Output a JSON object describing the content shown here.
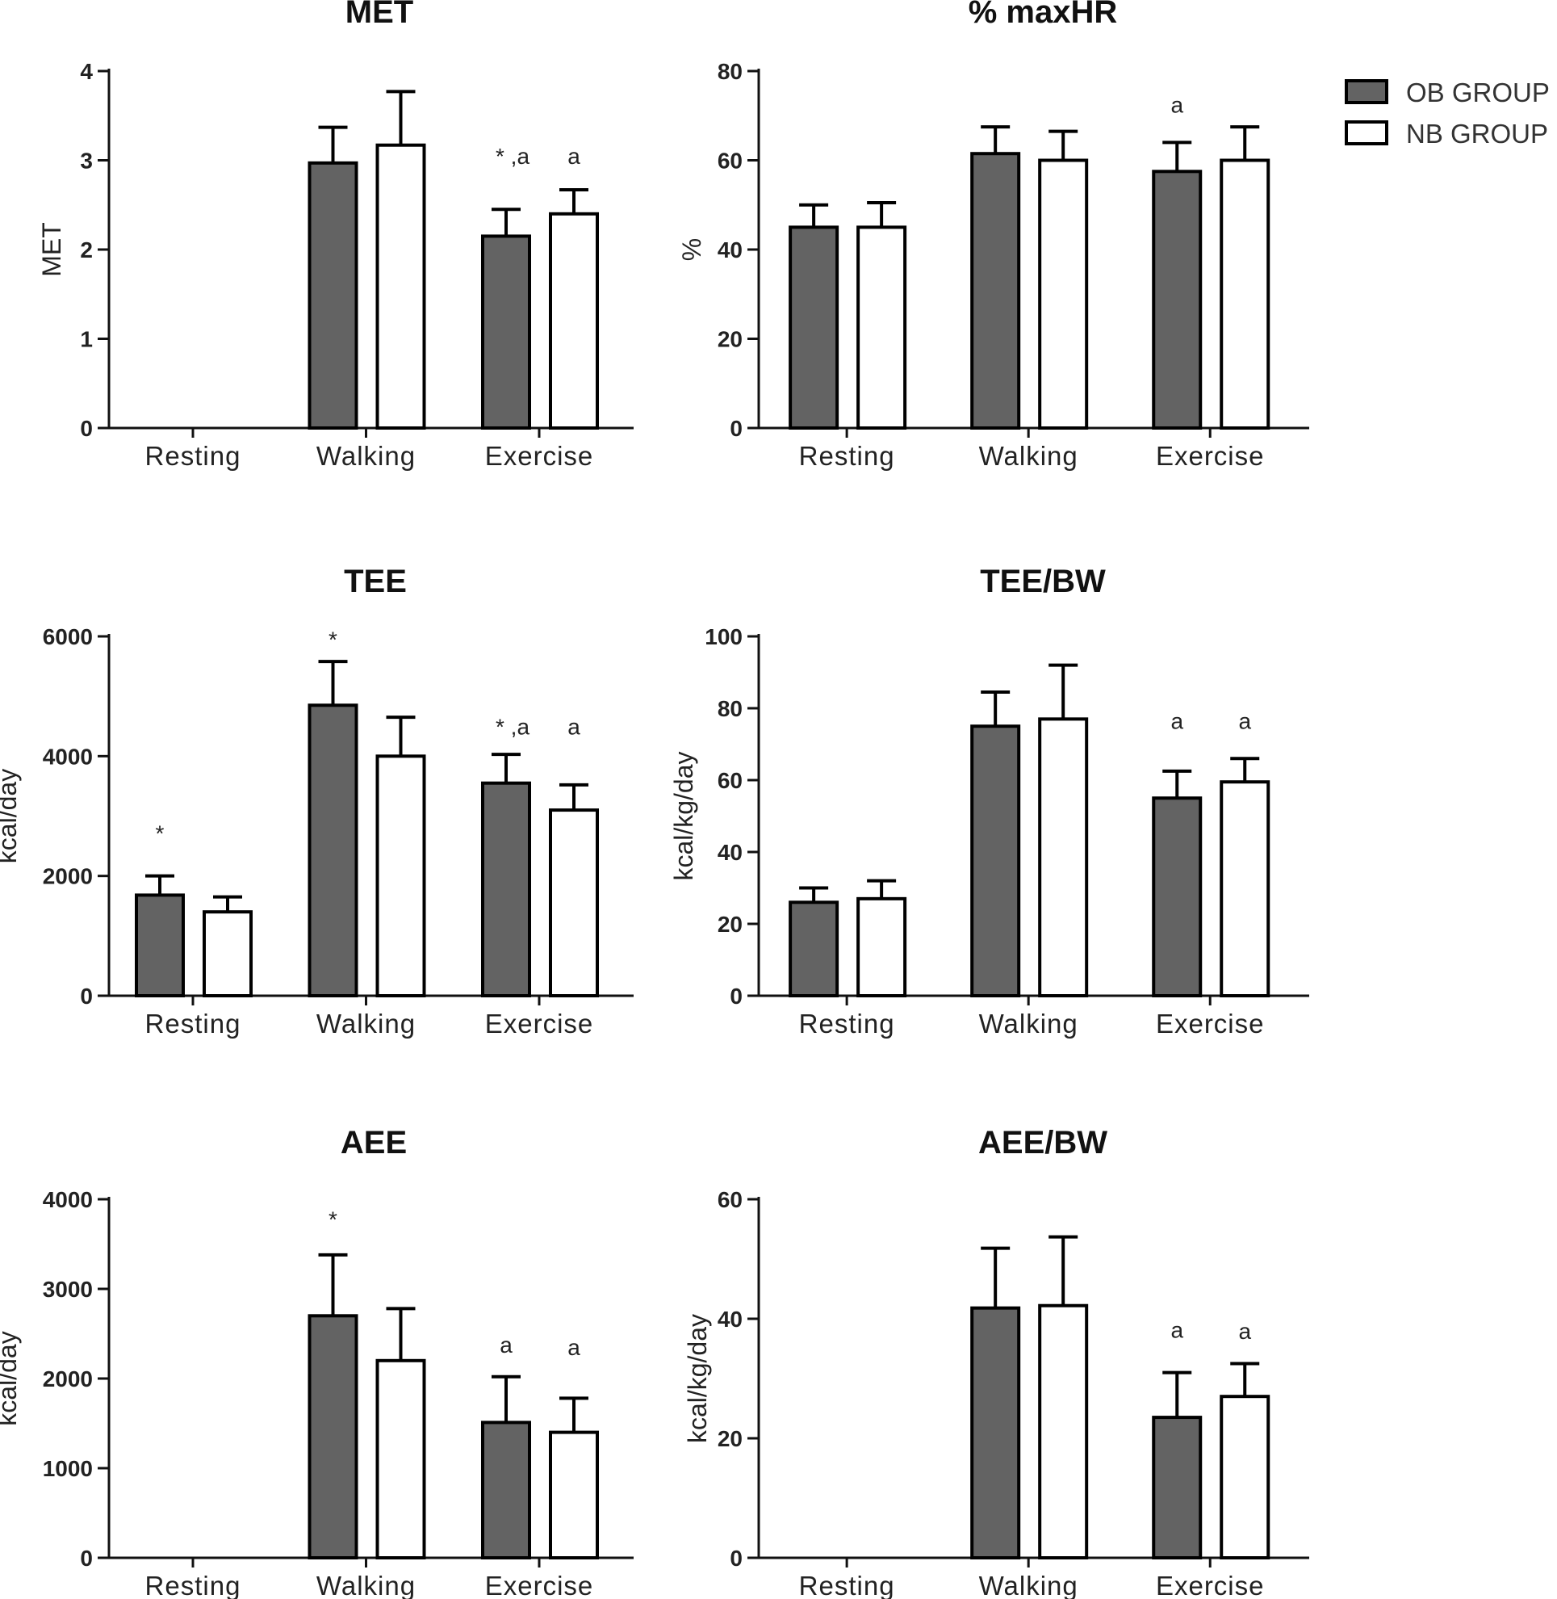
{
  "colors": {
    "ob": "#636363",
    "nb": "#ffffff",
    "stroke": "#000000"
  },
  "legend": [
    {
      "label": "OB GROUP",
      "color": "#636363"
    },
    {
      "label": "NB GROUP",
      "color": "#ffffff"
    }
  ],
  "chart_data": [
    {
      "type": "bar",
      "title": "MET",
      "ylabel": "MET",
      "ylim": [
        0,
        4
      ],
      "yticks": [
        0,
        1,
        2,
        3,
        4
      ],
      "categories": [
        "Resting",
        "Walking",
        "Exercise"
      ],
      "series": [
        {
          "name": "OB GROUP",
          "values": [
            null,
            2.97,
            2.15
          ],
          "err": [
            null,
            0.4,
            0.3
          ]
        },
        {
          "name": "NB GROUP",
          "values": [
            null,
            3.17,
            2.4
          ],
          "err": [
            null,
            0.6,
            0.27
          ]
        }
      ],
      "annotations": [
        {
          "category": 2,
          "series": 0,
          "text": "* ,a",
          "at": 3.05
        },
        {
          "category": 2,
          "series": 1,
          "text": "a",
          "at": 3.05
        }
      ]
    },
    {
      "type": "bar",
      "title": "% maxHR",
      "ylabel": "%",
      "ylim": [
        0,
        80
      ],
      "yticks": [
        0,
        20,
        40,
        60,
        80
      ],
      "categories": [
        "Resting",
        "Walking",
        "Exercise"
      ],
      "series": [
        {
          "name": "OB GROUP",
          "values": [
            45,
            61.5,
            57.5
          ],
          "err": [
            5,
            6,
            6.5
          ]
        },
        {
          "name": "NB GROUP",
          "values": [
            45,
            60,
            60
          ],
          "err": [
            5.5,
            6.5,
            7.5
          ]
        }
      ],
      "annotations": [
        {
          "category": 2,
          "series": 0,
          "text": "a",
          "at": 72.5
        }
      ]
    },
    {
      "type": "bar",
      "title": "TEE",
      "ylabel": "kcal/day",
      "ylim": [
        0,
        6000
      ],
      "yticks": [
        0,
        2000,
        4000,
        6000
      ],
      "categories": [
        "Resting",
        "Walking",
        "Exercise"
      ],
      "series": [
        {
          "name": "OB GROUP",
          "values": [
            1680,
            4850,
            3550
          ],
          "err": [
            320,
            730,
            480
          ]
        },
        {
          "name": "NB GROUP",
          "values": [
            1400,
            4000,
            3100
          ],
          "err": [
            250,
            650,
            420
          ]
        }
      ],
      "annotations": [
        {
          "category": 0,
          "series": 0,
          "text": "*",
          "at": 2720
        },
        {
          "category": 1,
          "series": 0,
          "text": "*",
          "at": 5950
        },
        {
          "category": 2,
          "series": 0,
          "text": "* ,a",
          "at": 4500
        },
        {
          "category": 2,
          "series": 1,
          "text": "a",
          "at": 4500
        }
      ]
    },
    {
      "type": "bar",
      "title": "TEE/BW",
      "ylabel": "kcal/kg/day",
      "ylim": [
        0,
        100
      ],
      "yticks": [
        0,
        20,
        40,
        60,
        80,
        100
      ],
      "categories": [
        "Resting",
        "Walking",
        "Exercise"
      ],
      "series": [
        {
          "name": "OB GROUP",
          "values": [
            26,
            75,
            55
          ],
          "err": [
            4,
            9.5,
            7.5
          ]
        },
        {
          "name": "NB GROUP",
          "values": [
            27,
            77,
            59.5
          ],
          "err": [
            5,
            15,
            6.5
          ]
        }
      ],
      "annotations": [
        {
          "category": 2,
          "series": 0,
          "text": "a",
          "at": 76.5
        },
        {
          "category": 2,
          "series": 1,
          "text": "a",
          "at": 76.5
        }
      ]
    },
    {
      "type": "bar",
      "title": "AEE",
      "ylabel": "kcal/day",
      "ylim": [
        0,
        4000
      ],
      "yticks": [
        0,
        1000,
        2000,
        3000,
        4000
      ],
      "categories": [
        "Resting",
        "Walking",
        "Exercise"
      ],
      "series": [
        {
          "name": "OB GROUP",
          "values": [
            null,
            2700,
            1510
          ],
          "err": [
            null,
            680,
            510
          ]
        },
        {
          "name": "NB GROUP",
          "values": [
            null,
            2200,
            1400
          ],
          "err": [
            null,
            580,
            380
          ]
        }
      ],
      "annotations": [
        {
          "category": 1,
          "series": 0,
          "text": "*",
          "at": 3780
        },
        {
          "category": 2,
          "series": 0,
          "text": "a",
          "at": 2380
        },
        {
          "category": 2,
          "series": 1,
          "text": "a",
          "at": 2350
        }
      ]
    },
    {
      "type": "bar",
      "title": "AEE/BW",
      "ylabel": "kcal/kg/day",
      "ylim": [
        0,
        60
      ],
      "yticks": [
        0,
        20,
        40,
        60
      ],
      "categories": [
        "Resting",
        "Walking",
        "Exercise"
      ],
      "series": [
        {
          "name": "OB GROUP",
          "values": [
            null,
            41.8,
            23.5
          ],
          "err": [
            null,
            10,
            7.5
          ]
        },
        {
          "name": "NB GROUP",
          "values": [
            null,
            42.2,
            27
          ],
          "err": [
            null,
            11.5,
            5.5
          ]
        }
      ],
      "annotations": [
        {
          "category": 2,
          "series": 0,
          "text": "a",
          "at": 38.2
        },
        {
          "category": 2,
          "series": 1,
          "text": "a",
          "at": 38
        }
      ]
    }
  ]
}
